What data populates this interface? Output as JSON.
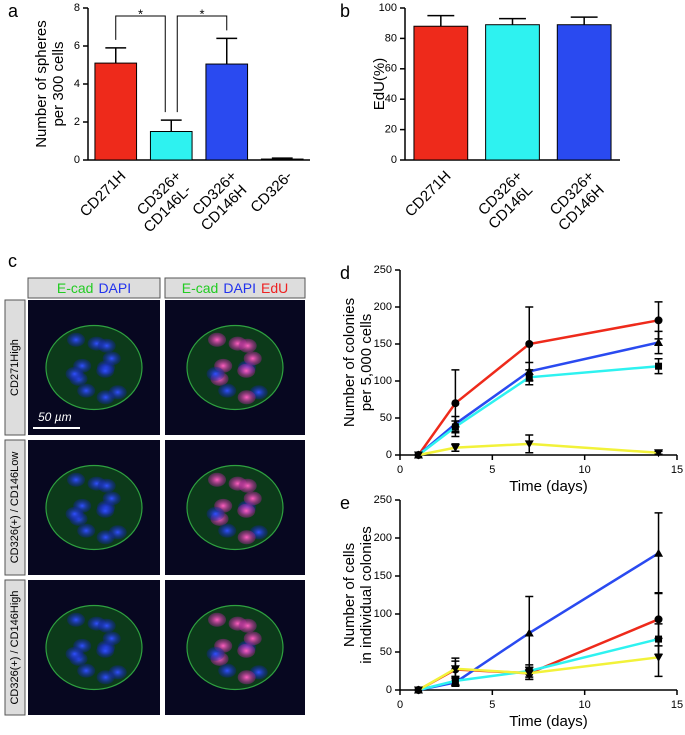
{
  "chart_data": [
    {
      "type": "bar",
      "panel": "a",
      "ylabel": [
        "Number of spheres",
        "per 300 cells"
      ],
      "categories": [
        [
          "CD271H"
        ],
        [
          "CD326+",
          "CD146L-"
        ],
        [
          "CD326+",
          "CD146H"
        ],
        [
          "CD326-"
        ]
      ],
      "values": [
        5.1,
        1.5,
        5.05,
        0.05
      ],
      "errors": [
        0.8,
        0.6,
        1.35,
        0.05
      ],
      "colors": [
        "#ee2a1b",
        "#2ef2f0",
        "#2a4af0",
        "#222222"
      ],
      "annotations": [
        "*",
        "*"
      ],
      "ylim": [
        0,
        8
      ],
      "yticks": [
        0,
        2,
        4,
        6,
        8
      ]
    },
    {
      "type": "bar",
      "panel": "b",
      "ylabel": [
        "EdU(%)"
      ],
      "categories": [
        [
          "CD271H"
        ],
        [
          "CD326+",
          "CD146L"
        ],
        [
          "CD326+",
          "CD146H"
        ]
      ],
      "values": [
        88,
        89,
        89
      ],
      "errors": [
        7,
        4,
        5
      ],
      "colors": [
        "#ee2a1b",
        "#2ef2f0",
        "#2a4af0"
      ],
      "ylim": [
        0,
        100
      ],
      "yticks": [
        0,
        20,
        40,
        60,
        80,
        100
      ]
    },
    {
      "type": "line",
      "panel": "d",
      "ylabel": [
        "Number of colonies",
        "per 5,000 cells"
      ],
      "xlabel": "Time (days)",
      "x": [
        1,
        3,
        7,
        14
      ],
      "series": [
        {
          "color": "#ee2a1b",
          "marker": "circle",
          "values": [
            0,
            70,
            150,
            182
          ],
          "errors": [
            null,
            45,
            50,
            25
          ]
        },
        {
          "color": "#2a4af0",
          "marker": "triangle-up",
          "values": [
            0,
            42,
            113,
            152
          ],
          "errors": [
            null,
            10,
            12,
            15
          ]
        },
        {
          "color": "#2ef2f0",
          "marker": "square",
          "values": [
            0,
            38,
            105,
            120
          ],
          "errors": [
            null,
            8,
            10,
            10
          ]
        },
        {
          "color": "#f2f23a",
          "marker": "triangle-down",
          "values": [
            0,
            10,
            15,
            3
          ],
          "errors": [
            null,
            5,
            12,
            2
          ]
        }
      ],
      "xlim": [
        0,
        15
      ],
      "xticks": [
        0,
        5,
        10,
        15
      ],
      "ylim": [
        0,
        250
      ],
      "yticks": [
        0,
        50,
        100,
        150,
        200,
        250
      ]
    },
    {
      "type": "line",
      "panel": "e",
      "ylabel": [
        "Number of cells",
        "in individual colonies"
      ],
      "xlabel": "Time (days)",
      "x": [
        1,
        3,
        7,
        14
      ],
      "series": [
        {
          "color": "#ee2a1b",
          "marker": "circle",
          "values": [
            0,
            27,
            22,
            93
          ],
          "errors": [
            null,
            15,
            8,
            35
          ]
        },
        {
          "color": "#2a4af0",
          "marker": "triangle-up",
          "values": [
            0,
            10,
            75,
            180
          ],
          "errors": [
            null,
            5,
            48,
            53
          ]
        },
        {
          "color": "#2ef2f0",
          "marker": "square",
          "values": [
            0,
            12,
            25,
            67
          ],
          "errors": [
            null,
            5,
            8,
            20
          ]
        },
        {
          "color": "#f2f23a",
          "marker": "triangle-down",
          "values": [
            0,
            28,
            22,
            43
          ],
          "errors": [
            null,
            10,
            8,
            25
          ]
        }
      ],
      "xlim": [
        0,
        15
      ],
      "xticks": [
        0,
        5,
        10,
        15
      ],
      "ylim": [
        0,
        250
      ],
      "yticks": [
        0,
        50,
        100,
        150,
        200,
        250
      ]
    }
  ],
  "image_panel": {
    "panel": "c",
    "column_headers": [
      [
        {
          "text": "E-cad",
          "color": "#22cc22"
        },
        {
          "text": "DAPI",
          "color": "#2233ee"
        }
      ],
      [
        {
          "text": "E-cad",
          "color": "#22cc22"
        },
        {
          "text": "DAPI",
          "color": "#2233ee"
        },
        {
          "text": "EdU",
          "color": "#ee2222"
        }
      ]
    ],
    "row_labels": [
      "CD271High",
      "CD326(+) / CD146Low",
      "CD326(+) / CD146High"
    ],
    "scale_bar": "50 µm"
  }
}
